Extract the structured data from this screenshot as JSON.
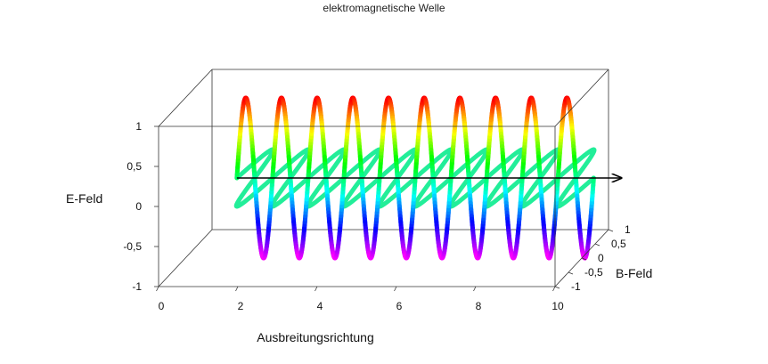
{
  "chart_data": {
    "type": "line",
    "title": "elektromagnetische Welle",
    "xlabel": "Ausbreitungsrichtung",
    "ylabel": "B-Feld",
    "zlabel": "E-Feld",
    "xlim": [
      0,
      10
    ],
    "ylim": [
      -1,
      1
    ],
    "zlim": [
      -1,
      1
    ],
    "x_ticks": [
      "0",
      "2",
      "4",
      "6",
      "8",
      "10"
    ],
    "y_ticks": [
      "-1",
      "-0,5",
      "0",
      "0,5",
      "1"
    ],
    "z_ticks": [
      "-1",
      "-0,5",
      "0",
      "0,5",
      "1"
    ],
    "grid": false,
    "series": [
      {
        "field": "E",
        "x_start": 1.3,
        "x_end": 10.3,
        "cycles": 10,
        "amplitude": 1,
        "coloring": "rainbow by amplitude (red at +1, magenta at -1)"
      },
      {
        "field": "B",
        "x_start": 1.3,
        "x_end": 10.3,
        "cycles": 10,
        "amplitude": 1,
        "color": "#22ee99"
      }
    ],
    "arrow": {
      "x_from": 1.3,
      "x_to": 11.0,
      "color": "#000000"
    }
  }
}
